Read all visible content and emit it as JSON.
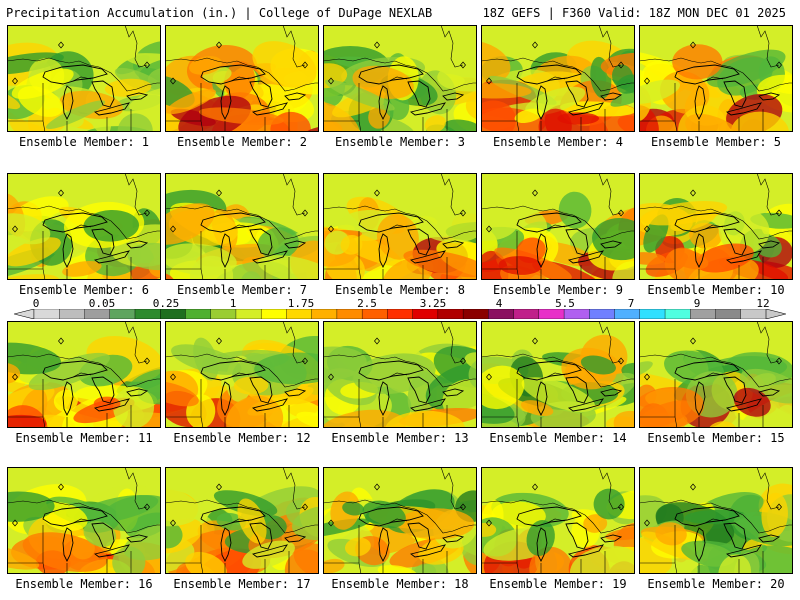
{
  "header": {
    "left_title": "Precipitation Accumulation (in.) | College of DuPage NEXLAB",
    "right_title": "18Z GEFS | F360 Valid: 18Z MON DEC 01 2025"
  },
  "legend": {
    "ticks": [
      "0",
      "0.05",
      "0.25",
      "1",
      "1.75",
      "2.5",
      "3.25",
      "4",
      "5.5",
      "7",
      "9",
      "12"
    ],
    "colors": [
      "#d9d9d9",
      "#bdbdbd",
      "#9e9e9e",
      "#5fa55f",
      "#2e8b2e",
      "#1f6f1f",
      "#50b030",
      "#9acd32",
      "#d4ee28",
      "#ffff00",
      "#ffd800",
      "#ffb000",
      "#ff8c00",
      "#ff6000",
      "#ff3000",
      "#e00000",
      "#b00000",
      "#8b0000",
      "#8b1060",
      "#c0208a",
      "#e830c8",
      "#b060f0",
      "#7080ff",
      "#50b0ff",
      "#30e0ff",
      "#50ffe0",
      "#a0a0a0",
      "#8a8a8a",
      "#c8c8c8"
    ]
  },
  "members": [
    {
      "label": "Ensemble Member: 1"
    },
    {
      "label": "Ensemble Member: 2"
    },
    {
      "label": "Ensemble Member: 3"
    },
    {
      "label": "Ensemble Member: 4"
    },
    {
      "label": "Ensemble Member: 5"
    },
    {
      "label": "Ensemble Member: 6"
    },
    {
      "label": "Ensemble Member: 7"
    },
    {
      "label": "Ensemble Member: 8"
    },
    {
      "label": "Ensemble Member: 9"
    },
    {
      "label": "Ensemble Member: 10"
    },
    {
      "label": "Ensemble Member: 11"
    },
    {
      "label": "Ensemble Member: 12"
    },
    {
      "label": "Ensemble Member: 13"
    },
    {
      "label": "Ensemble Member: 14"
    },
    {
      "label": "Ensemble Member: 15"
    },
    {
      "label": "Ensemble Member: 16"
    },
    {
      "label": "Ensemble Member: 17"
    },
    {
      "label": "Ensemble Member: 18"
    },
    {
      "label": "Ensemble Member: 19"
    },
    {
      "label": "Ensemble Member: 20"
    }
  ]
}
